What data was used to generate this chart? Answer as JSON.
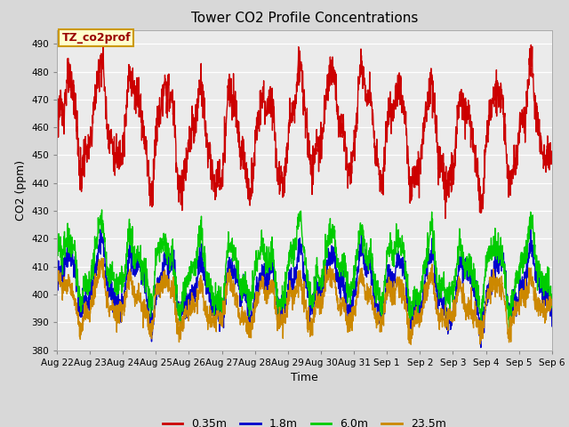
{
  "title": "Tower CO2 Profile Concentrations",
  "xlabel": "Time",
  "ylabel": "CO2 (ppm)",
  "ylim": [
    380,
    495
  ],
  "yticks": [
    380,
    390,
    400,
    410,
    420,
    430,
    440,
    450,
    460,
    470,
    480,
    490
  ],
  "annotation": "TZ_co2prof",
  "legend_labels": [
    "0.35m",
    "1.8m",
    "6.0m",
    "23.5m"
  ],
  "line_colors": [
    "#cc0000",
    "#0000cc",
    "#00cc00",
    "#cc8800"
  ],
  "fig_facecolor": "#d8d8d8",
  "plot_facecolor": "#ebebeb",
  "n_days": 15,
  "x_tick_labels": [
    "Aug 22",
    "Aug 23",
    "Aug 24",
    "Aug 25",
    "Aug 26",
    "Aug 27",
    "Aug 28",
    "Aug 29",
    "Aug 30",
    "Aug 31",
    "Sep 1",
    "Sep 2",
    "Sep 3",
    "Sep 4",
    "Sep 5",
    "Sep 6"
  ]
}
